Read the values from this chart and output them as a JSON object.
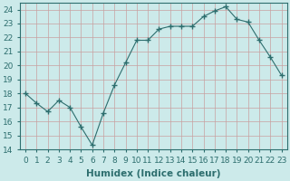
{
  "x": [
    0,
    1,
    2,
    3,
    4,
    5,
    6,
    7,
    8,
    9,
    10,
    11,
    12,
    13,
    14,
    15,
    16,
    17,
    18,
    19,
    20,
    21,
    22,
    23
  ],
  "y": [
    18,
    17.3,
    16.7,
    17.5,
    17.0,
    15.6,
    14.3,
    16.6,
    18.6,
    20.2,
    21.8,
    21.8,
    22.6,
    22.8,
    22.8,
    22.8,
    23.5,
    23.9,
    24.2,
    23.3,
    23.1,
    21.8,
    20.6,
    19.3
  ],
  "line_color": "#2d6e6e",
  "marker": "+",
  "marker_size": 4,
  "bg_color": "#cceaea",
  "grid_color": "#c8a0a0",
  "xlabel": "Humidex (Indice chaleur)",
  "ylim": [
    14,
    24.5
  ],
  "yticks": [
    14,
    15,
    16,
    17,
    18,
    19,
    20,
    21,
    22,
    23,
    24
  ],
  "xticks": [
    0,
    1,
    2,
    3,
    4,
    5,
    6,
    7,
    8,
    9,
    10,
    11,
    12,
    13,
    14,
    15,
    16,
    17,
    18,
    19,
    20,
    21,
    22,
    23
  ],
  "label_fontsize": 7.5,
  "tick_fontsize": 6.5
}
